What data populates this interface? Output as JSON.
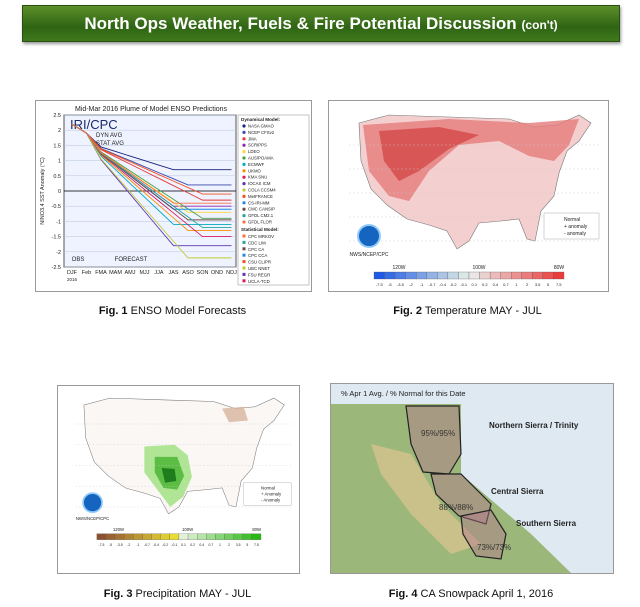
{
  "header": {
    "title": "North Ops Weather, Fuels & Fire Potential Discussion",
    "suffix": "(con't)"
  },
  "figures": [
    {
      "label": "Fig. 1",
      "caption": "ENSO Model Forecasts",
      "title": "Mid-Mar 2016 Plume of Model ENSO Predictions",
      "logo": "IRI/CPC",
      "dyn_avg": "DYN AVG",
      "stat_avg": "STAT AVG",
      "y_axis": "NINO3.4 SST Anomaly (°C)",
      "obs": "OBS",
      "forecast": "FORECAST",
      "year": "2016",
      "months": [
        "DJF",
        "Feb",
        "FMA",
        "MAM",
        "AMJ",
        "MJJ",
        "JJA",
        "JAS",
        "ASO",
        "SON",
        "OND",
        "NDJ"
      ],
      "yticks": [
        "2.5",
        "2",
        "1.5",
        "1",
        "0.5",
        "0",
        "-0.5",
        "-1",
        "-1.5",
        "-2",
        "-2.5"
      ],
      "dyn_header": "Dynamical Model:",
      "dyn_models": [
        "NASA GMAO",
        "NCEP CFSv2",
        "JMA",
        "SCRIPPS",
        "LDEO",
        "AUS/POAMA",
        "ECMWF",
        "UKMO",
        "KMA SNU",
        "IOCAS ICM",
        "COLA CCSM4",
        "MetFRANCE",
        "CS-IRI-MM",
        "CMC CANSIP",
        "GFDL CM2.1",
        "GFDL FLOR"
      ],
      "stat_header": "Statistical Model:",
      "stat_models": [
        "CPC MRKOV",
        "CDC LIM",
        "CPC CA",
        "CPC CCA",
        "CSU CLIPR",
        "UBC NNET",
        "FSU REGR",
        "UCLA-TCD"
      ]
    },
    {
      "label": "Fig. 2",
      "caption": "Temperature MAY - JUL",
      "credit": "NWS/NCEP/CPC",
      "legend": [
        "Normal",
        "+ anomaly",
        "- anomaly"
      ],
      "lon": [
        "120W",
        "100W",
        "80W"
      ],
      "scale": [
        "-7.5",
        "-5",
        "-3.5",
        "-2",
        "-1",
        "-0.7",
        "-0.4",
        "-0.2",
        "-0.1",
        "0.1",
        "0.2",
        "0.4",
        "0.7",
        "1",
        "2",
        "3.5",
        "5",
        "7.5"
      ]
    },
    {
      "label": "Fig. 3",
      "caption": "Precipitation MAY - JUL",
      "credit": "NWS/NCEP/CPC",
      "legend": [
        "Normal",
        "+ Anomaly",
        "- Anomaly"
      ],
      "lon": [
        "120W",
        "100W",
        "80W"
      ],
      "scale": [
        "-7.5",
        "-5",
        "-3.5",
        "-2",
        "-1",
        "-0.7",
        "-0.4",
        "-0.2",
        "-0.1",
        "0.1",
        "0.2",
        "0.4",
        "0.7",
        "1",
        "2",
        "3.5",
        "5",
        "7.5"
      ]
    },
    {
      "label": "Fig. 4",
      "caption": "CA Snowpack April 1, 2016",
      "title": "% Apr 1 Avg. / % Normal for this Date",
      "regions": [
        {
          "name": "Northern Sierra / Trinity",
          "value": "95%/95%"
        },
        {
          "name": "Central Sierra",
          "value": "88%/88%"
        },
        {
          "name": "Southern Sierra",
          "value": "73%/73%"
        }
      ]
    }
  ]
}
